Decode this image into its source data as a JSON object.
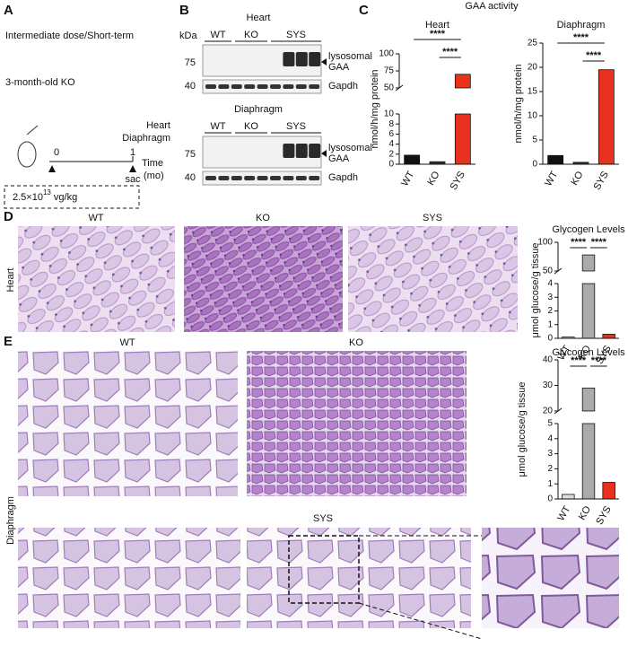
{
  "panels": {
    "A": {
      "label": "A",
      "lines": [
        "Intermediate dose/Short-term",
        "3-month-old KO"
      ],
      "organs": [
        "Heart",
        "Diaphragm"
      ],
      "timeline": {
        "start": "0",
        "end": "1",
        "axis_label": "Time",
        "unit": "(mo)",
        "end_note": "sac"
      },
      "dose": {
        "base": "2.5×10",
        "exp": "13",
        "unit": " vg/kg"
      }
    },
    "B": {
      "label": "B",
      "unit": "kDa",
      "blots": [
        {
          "title": "Heart",
          "groups": [
            "WT",
            "KO",
            "SYS"
          ],
          "rows": [
            {
              "marker": "75",
              "name": [
                "lysosomal",
                "GAA"
              ]
            },
            {
              "marker": "40",
              "name": [
                "Gapdh"
              ]
            }
          ]
        },
        {
          "title": "Diaphragm",
          "groups": [
            "WT",
            "KO",
            "SYS"
          ],
          "rows": [
            {
              "marker": "75",
              "name": [
                "lysosomal",
                "GAA"
              ]
            },
            {
              "marker": "40",
              "name": [
                "Gapdh"
              ]
            }
          ]
        }
      ]
    },
    "C": {
      "label": "C",
      "title": "GAA activity"
    },
    "D": {
      "label": "D",
      "row_label": "Heart",
      "images": [
        "WT",
        "KO",
        "SYS"
      ]
    },
    "E": {
      "label": "E",
      "row_label": "Diaphragm",
      "images": [
        "WT",
        "KO"
      ],
      "lower_label": "SYS"
    }
  },
  "chart_data": [
    {
      "type": "bar",
      "title": "Heart",
      "ylabel": "nmol/h/mg protein",
      "categories": [
        "WT",
        "KO",
        "SYS"
      ],
      "values": [
        1.8,
        0.5,
        70
      ],
      "colors": [
        "#111111",
        "#333333",
        "#e8321e"
      ],
      "axis_segments": [
        {
          "ylim": [
            0,
            10
          ],
          "yticks": [
            0,
            2,
            4,
            6,
            8,
            10
          ]
        },
        {
          "ylim": [
            50,
            100
          ],
          "yticks": [
            50,
            75,
            100
          ]
        }
      ],
      "annotations": [
        {
          "text": "****",
          "between": [
            "WT",
            "SYS"
          ]
        },
        {
          "text": "****",
          "between": [
            "KO",
            "SYS"
          ]
        }
      ]
    },
    {
      "type": "bar",
      "title": "Diaphragm",
      "ylabel": "nmol/h/mg protein",
      "categories": [
        "WT",
        "KO",
        "SYS"
      ],
      "values": [
        1.8,
        0.4,
        19.5
      ],
      "colors": [
        "#111111",
        "#333333",
        "#e8321e"
      ],
      "axis_segments": [
        {
          "ylim": [
            0,
            25
          ],
          "yticks": [
            0,
            5,
            10,
            15,
            20,
            25
          ]
        }
      ],
      "annotations": [
        {
          "text": "****",
          "between": [
            "WT",
            "SYS"
          ]
        },
        {
          "text": "****",
          "between": [
            "KO",
            "SYS"
          ]
        }
      ]
    },
    {
      "type": "bar",
      "title": "Glycogen Levels",
      "ylabel": "μmol glucose/g tissue",
      "categories": [
        "WT",
        "KO",
        "SYS"
      ],
      "values": [
        0.1,
        78,
        0.3
      ],
      "colors": [
        "#dddddd",
        "#aaaaaa",
        "#e8321e"
      ],
      "axis_segments": [
        {
          "ylim": [
            0,
            4
          ],
          "yticks": [
            0,
            1,
            2,
            3,
            4
          ]
        },
        {
          "ylim": [
            50,
            100
          ],
          "yticks": [
            50,
            100
          ]
        }
      ],
      "annotations": [
        {
          "text": "****",
          "between": [
            "WT",
            "KO"
          ]
        },
        {
          "text": "****",
          "between": [
            "KO",
            "SYS"
          ]
        }
      ]
    },
    {
      "type": "bar",
      "title": "Glycogen Levels",
      "ylabel": "μmol glucose/g tissue",
      "categories": [
        "WT",
        "KO",
        "SYS"
      ],
      "values": [
        0.3,
        29,
        1.1
      ],
      "colors": [
        "#dddddd",
        "#aaaaaa",
        "#e8321e"
      ],
      "axis_segments": [
        {
          "ylim": [
            0,
            5
          ],
          "yticks": [
            0,
            1,
            2,
            3,
            4,
            5
          ]
        },
        {
          "ylim": [
            20,
            40
          ],
          "yticks": [
            20,
            30,
            40
          ]
        }
      ],
      "annotations": [
        {
          "text": "****",
          "between": [
            "WT",
            "KO"
          ]
        },
        {
          "text": "****",
          "between": [
            "KO",
            "SYS"
          ]
        }
      ]
    }
  ]
}
